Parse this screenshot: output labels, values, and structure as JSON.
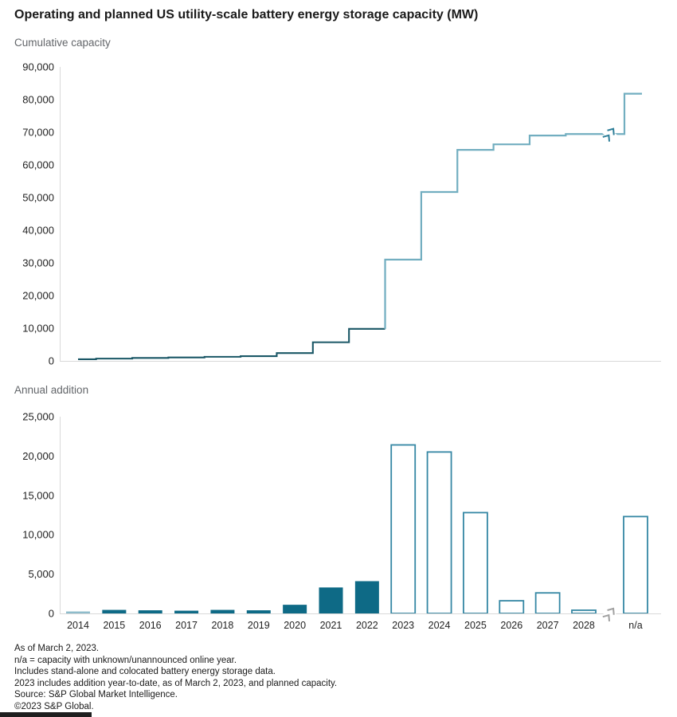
{
  "title": "Operating and planned US utility-scale battery energy storage capacity (MW)",
  "chart_data": [
    {
      "type": "line",
      "line_style": "step",
      "title": "Cumulative capacity",
      "x": [
        "2014",
        "2015",
        "2016",
        "2017",
        "2018",
        "2019",
        "2020",
        "2021",
        "2022",
        "2023",
        "2024",
        "2025",
        "2026",
        "2027",
        "2028",
        "n/a"
      ],
      "values": [
        500,
        700,
        900,
        1050,
        1250,
        1450,
        2400,
        5700,
        9800,
        31000,
        51700,
        64600,
        66300,
        69000,
        69450,
        81800
      ],
      "segments": {
        "operating_through": "2022",
        "planned_from": "2023"
      },
      "ylim": [
        0,
        90000
      ],
      "ytick_step": 10000,
      "grid": false,
      "legend": null,
      "axis_break_before": "n/a"
    },
    {
      "type": "bar",
      "title": "Annual addition",
      "categories": [
        "2014",
        "2015",
        "2016",
        "2017",
        "2018",
        "2019",
        "2020",
        "2021",
        "2022",
        "2023",
        "2024",
        "2025",
        "2026",
        "2027",
        "2028",
        "n/a"
      ],
      "values": [
        250,
        450,
        400,
        350,
        450,
        400,
        1100,
        3300,
        4100,
        21500,
        20600,
        12900,
        1700,
        2700,
        500,
        12400
      ],
      "bar_styles": [
        "solid-light",
        "solid",
        "solid",
        "solid",
        "solid",
        "solid",
        "solid",
        "solid",
        "solid",
        "outline",
        "outline",
        "outline",
        "outline",
        "outline",
        "outline",
        "outline"
      ],
      "ylim": [
        0,
        25000
      ],
      "ytick_step": 5000,
      "grid": false,
      "legend": null,
      "axis_break_before": "n/a"
    }
  ],
  "colors": {
    "line_operating": "#1a5766",
    "line_planned": "#72aec0",
    "bar_solid": "#0e6a86",
    "bar_solid_light": "#8ebccb",
    "bar_outline_stroke": "#3587a4",
    "axis_line": "#d9d9d9",
    "break_mark_top": "#2d7e98",
    "break_mark_bottom": "#a0a0a0",
    "title_text": "#1a1a1a",
    "subtitle_text": "#63666a",
    "tick_text": "#1f1f1f",
    "footnote_text": "#1a1a1a",
    "footer_bar": "#1e1e1e"
  },
  "footnotes": [
    "As of March 2, 2023.",
    "n/a = capacity with unknown/unannounced online year.",
    "Includes stand-alone and colocated battery energy storage data.",
    "2023 includes addition year-to-date, as of March 2, 2023, and planned capacity.",
    "Source: S&P Global Market Intelligence.",
    "©2023 S&P Global."
  ]
}
